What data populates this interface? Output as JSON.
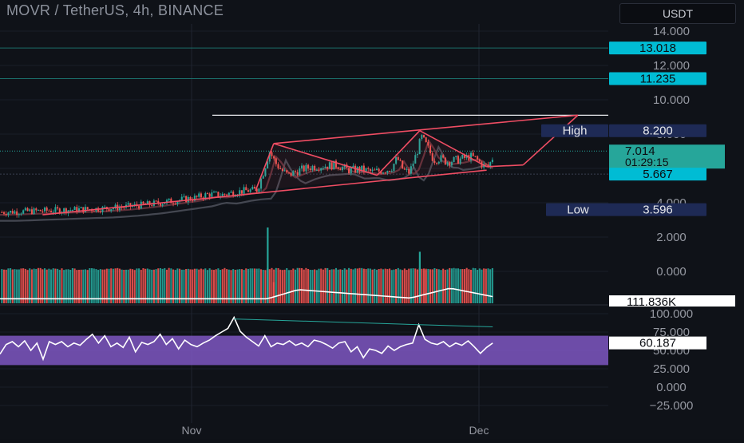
{
  "header": {
    "title": "MOVR / TetherUS, 4h, BINANCE",
    "currency_button": "USDT"
  },
  "colors": {
    "background": "#0f1218",
    "up": "#26a69a",
    "down": "#ef5350",
    "pattern": "#ef4d63",
    "rsi_band": "#7e57c2",
    "rsi_line": "#ffffff",
    "cyan_label": "#00bcd4",
    "navy_label": "#1e2a55",
    "last_price_label": "#26a69a"
  },
  "x_axis": {
    "ticks": [
      "Nov",
      "Dec"
    ]
  },
  "price_axis": {
    "ticks": [
      "14.000",
      "12.000",
      "10.000",
      "8.000",
      "6.000",
      "4.000",
      "2.000",
      "0.000"
    ],
    "labels": {
      "line_13018": "13.018",
      "line_11235": "11.235",
      "high_name": "High",
      "high_value": "8.200",
      "last_price": "7.014",
      "countdown": "01:29:15",
      "line_5667": "5.667",
      "low_name": "Low",
      "low_value": "3.596",
      "volume_value": "111.836K"
    }
  },
  "rsi_axis": {
    "ticks": [
      "100.000",
      "75.000",
      "50.000",
      "25.000",
      "0.000",
      "−25.000"
    ],
    "current": "60.187",
    "upper_band": 70,
    "lower_band": 30
  },
  "chart_data": [
    {
      "type": "candlestick",
      "title": "MOVR / TetherUS, 4h, BINANCE",
      "ylim": [
        0,
        14.6
      ],
      "x_ticks": [
        "Nov",
        "Dec"
      ],
      "close_path": [
        [
          0,
          3.45
        ],
        [
          4,
          3.5
        ],
        [
          8,
          3.55
        ],
        [
          12,
          3.6
        ],
        [
          16,
          3.65
        ],
        [
          20,
          3.75
        ],
        [
          24,
          3.9
        ],
        [
          28,
          4.1
        ],
        [
          32,
          4.3
        ],
        [
          34,
          4.5
        ],
        [
          36,
          4.45
        ],
        [
          38,
          4.6
        ],
        [
          40,
          4.7
        ],
        [
          42,
          4.75
        ],
        [
          43,
          5.8
        ],
        [
          44,
          7.0
        ],
        [
          45,
          6.3
        ],
        [
          46,
          5.9
        ],
        [
          47,
          5.6
        ],
        [
          49,
          5.9
        ],
        [
          51,
          6.1
        ],
        [
          53,
          6.15
        ],
        [
          55,
          6.2
        ],
        [
          57,
          5.9
        ],
        [
          59,
          5.95
        ],
        [
          61,
          5.8
        ],
        [
          63,
          5.9
        ],
        [
          64,
          6.0
        ],
        [
          65,
          6.6
        ],
        [
          66,
          5.9
        ],
        [
          67,
          5.75
        ],
        [
          68,
          6.7
        ],
        [
          69,
          7.8
        ],
        [
          70,
          7.2
        ],
        [
          71,
          6.5
        ],
        [
          72,
          6.6
        ],
        [
          73,
          6.4
        ],
        [
          75,
          6.5
        ],
        [
          77,
          6.7
        ],
        [
          78,
          6.55
        ],
        [
          79,
          6.2
        ],
        [
          80,
          6.1
        ],
        [
          81,
          6.9
        ]
      ],
      "horizontal_lines": [
        13.018,
        11.235,
        5.667
      ],
      "resistance_line": 9.1,
      "pattern_vertices": [
        [
          7,
          3.3
        ],
        [
          42,
          4.7
        ],
        [
          45,
          7.45
        ],
        [
          62,
          5.6
        ],
        [
          69,
          8.2
        ],
        [
          80,
          6.1
        ],
        [
          95,
          9.1
        ],
        [
          86,
          6.2
        ],
        [
          80,
          5.9
        ],
        [
          62,
          5.6
        ]
      ],
      "high": 8.2,
      "low": 3.596,
      "last_price": 7.014
    },
    {
      "type": "bar",
      "series": [
        {
          "name": "Volume",
          "spikes": [
            {
              "position": 44,
              "value": 2.5
            },
            {
              "position": 45,
              "value": 0.7
            },
            {
              "position": 69,
              "value": 1.7
            },
            {
              "position": 70,
              "value": 1.1
            }
          ]
        }
      ],
      "last": "111.836K"
    },
    {
      "type": "line",
      "series": [
        {
          "name": "RSI",
          "values": [
            45,
            58,
            62,
            55,
            63,
            50,
            60,
            38,
            62,
            58,
            62,
            55,
            60,
            57,
            65,
            72,
            60,
            70,
            55,
            60,
            54,
            68,
            48,
            61,
            58,
            62,
            72,
            58,
            66,
            52,
            64,
            58,
            55,
            60,
            64,
            70,
            75,
            80,
            95,
            76,
            68,
            62,
            56,
            70,
            55,
            60,
            58,
            63,
            57,
            60,
            55,
            64,
            62,
            58,
            53,
            60,
            62,
            48,
            55,
            40,
            52,
            50,
            46,
            56,
            50,
            55,
            58,
            60,
            85,
            65,
            60,
            58,
            62,
            55,
            60,
            57,
            63,
            55,
            46,
            54,
            60
          ]
        }
      ],
      "ylim": [
        -30,
        100
      ],
      "bands": [
        30,
        70
      ],
      "current": 60.187
    }
  ]
}
